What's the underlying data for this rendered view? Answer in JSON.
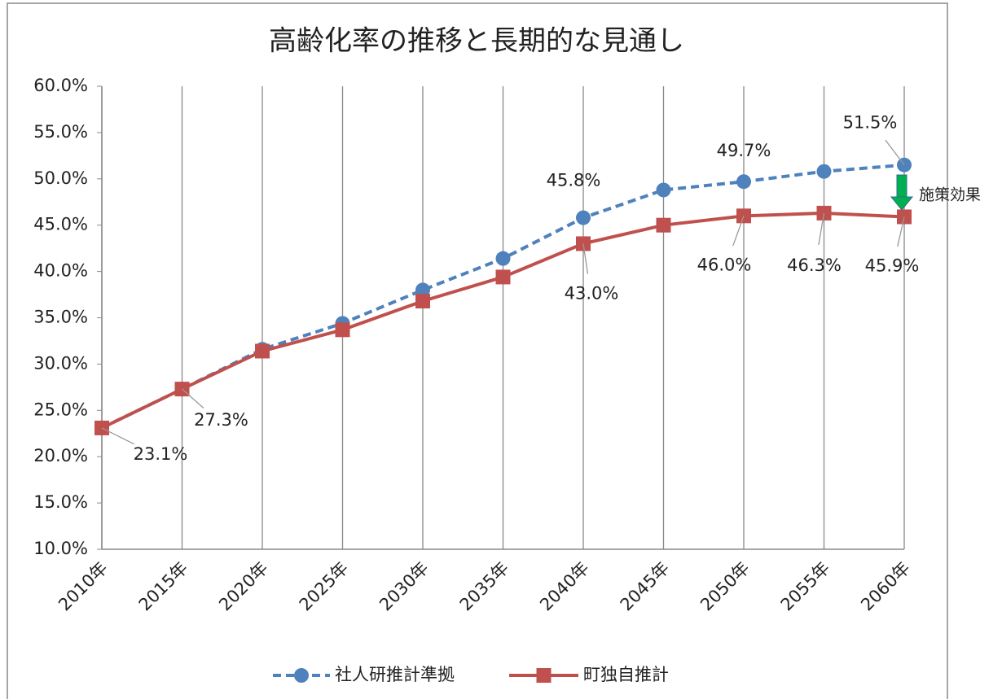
{
  "chart_data": {
    "type": "line",
    "title": "高齢化率の推移と長期的な見通し",
    "categories": [
      "2010年",
      "2015年",
      "2020年",
      "2025年",
      "2030年",
      "2035年",
      "2040年",
      "2045年",
      "2050年",
      "2055年",
      "2060年"
    ],
    "series": [
      {
        "name": "社人研推計準拠",
        "color": "#4f81bd",
        "dashed": true,
        "marker": "circle",
        "values": [
          23.1,
          27.3,
          31.6,
          34.4,
          38.0,
          41.4,
          45.8,
          48.8,
          49.7,
          50.8,
          51.5
        ],
        "value_labels": [
          null,
          null,
          null,
          null,
          null,
          null,
          "45.8%",
          null,
          "49.7%",
          null,
          "51.5%"
        ]
      },
      {
        "name": "町独自推計",
        "color": "#c0504d",
        "dashed": false,
        "marker": "square",
        "values": [
          23.1,
          27.3,
          31.4,
          33.7,
          36.8,
          39.4,
          43.0,
          45.0,
          46.0,
          46.3,
          45.9
        ],
        "value_labels": [
          "23.1%",
          "27.3%",
          null,
          null,
          null,
          null,
          "43.0%",
          null,
          "46.0%",
          "46.3%",
          "45.9%"
        ]
      }
    ],
    "ylim": [
      10,
      60
    ],
    "yticks": [
      {
        "value": 10,
        "label": "10.0%"
      },
      {
        "value": 15,
        "label": "15.0%"
      },
      {
        "value": 20,
        "label": "20.0%"
      },
      {
        "value": 25,
        "label": "25.0%"
      },
      {
        "value": 30,
        "label": "30.0%"
      },
      {
        "value": 35,
        "label": "35.0%"
      },
      {
        "value": 40,
        "label": "40.0%"
      },
      {
        "value": 45,
        "label": "45.0%"
      },
      {
        "value": 50,
        "label": "50.0%"
      },
      {
        "value": 55,
        "label": "55.0%"
      },
      {
        "value": 60,
        "label": "60.0%"
      }
    ],
    "grid": "vertical",
    "legend": "bottom",
    "annotation": "施策効果"
  }
}
